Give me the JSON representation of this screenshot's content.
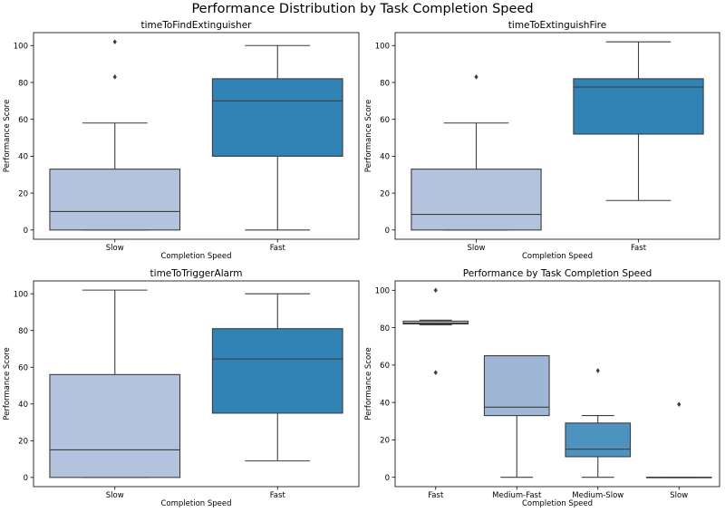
{
  "figure": {
    "title": "Performance Distribution by Task Completion Speed"
  },
  "chart_data": [
    {
      "type": "box",
      "title": "timeToFindExtinguisher",
      "xlabel": "Completion Speed",
      "ylabel": "Performance Score",
      "ylim": [
        -5,
        107
      ],
      "yticks": [
        0,
        20,
        40,
        60,
        80,
        100
      ],
      "categories": [
        "Slow",
        "Fast"
      ],
      "colors": [
        "#b3c3dd",
        "#3283b5"
      ],
      "boxes": [
        {
          "q1": 0,
          "median": 10,
          "q3": 33,
          "whislo": 0,
          "whishi": 58,
          "fliers": [
            83,
            102
          ]
        },
        {
          "q1": 40,
          "median": 70,
          "q3": 82,
          "whislo": 0,
          "whishi": 100,
          "fliers": []
        }
      ]
    },
    {
      "type": "box",
      "title": "timeToExtinguishFire",
      "xlabel": "Completion Speed",
      "ylabel": "Performance Score",
      "ylim": [
        -5,
        107
      ],
      "yticks": [
        0,
        20,
        40,
        60,
        80,
        100
      ],
      "categories": [
        "Slow",
        "Fast"
      ],
      "colors": [
        "#b3c3dd",
        "#3283b5"
      ],
      "boxes": [
        {
          "q1": 0,
          "median": 8.5,
          "q3": 33,
          "whislo": 0,
          "whishi": 58,
          "fliers": [
            83
          ]
        },
        {
          "q1": 52,
          "median": 77.5,
          "q3": 82,
          "whislo": 16,
          "whishi": 102,
          "fliers": []
        }
      ]
    },
    {
      "type": "box",
      "title": "timeToTriggerAlarm",
      "xlabel": "Completion Speed",
      "ylabel": "Performance Score",
      "ylim": [
        -5,
        107
      ],
      "yticks": [
        0,
        20,
        40,
        60,
        80,
        100
      ],
      "categories": [
        "Slow",
        "Fast"
      ],
      "colors": [
        "#b3c3dd",
        "#3283b5"
      ],
      "boxes": [
        {
          "q1": 0,
          "median": 15,
          "q3": 56,
          "whislo": 0,
          "whishi": 102,
          "fliers": []
        },
        {
          "q1": 35,
          "median": 64.5,
          "q3": 81,
          "whislo": 9,
          "whishi": 100,
          "fliers": []
        }
      ]
    },
    {
      "type": "box",
      "title": "Performance by Task Completion Speed",
      "xlabel": "Completion Speed",
      "ylabel": "Performance Score",
      "ylim": [
        -5,
        105
      ],
      "yticks": [
        0,
        20,
        40,
        60,
        80,
        100
      ],
      "categories": [
        "Fast",
        "Medium-Fast",
        "Medium-Slow",
        "Slow"
      ],
      "colors": [
        "#c6d2e6",
        "#9fb6d6",
        "#4e93c0",
        "#2b7bb4"
      ],
      "boxes": [
        {
          "q1": 82,
          "median": 82.5,
          "q3": 83.5,
          "whislo": 81.5,
          "whishi": 84,
          "fliers": [
            56,
            100
          ]
        },
        {
          "q1": 33,
          "median": 37.5,
          "q3": 65,
          "whislo": 0,
          "whishi": 65,
          "fliers": []
        },
        {
          "q1": 11,
          "median": 15,
          "q3": 29,
          "whislo": 0,
          "whishi": 33,
          "fliers": [
            57
          ]
        },
        {
          "q1": 0,
          "median": 0,
          "q3": 0,
          "whislo": 0,
          "whishi": 0,
          "fliers": [
            39
          ]
        }
      ]
    }
  ]
}
